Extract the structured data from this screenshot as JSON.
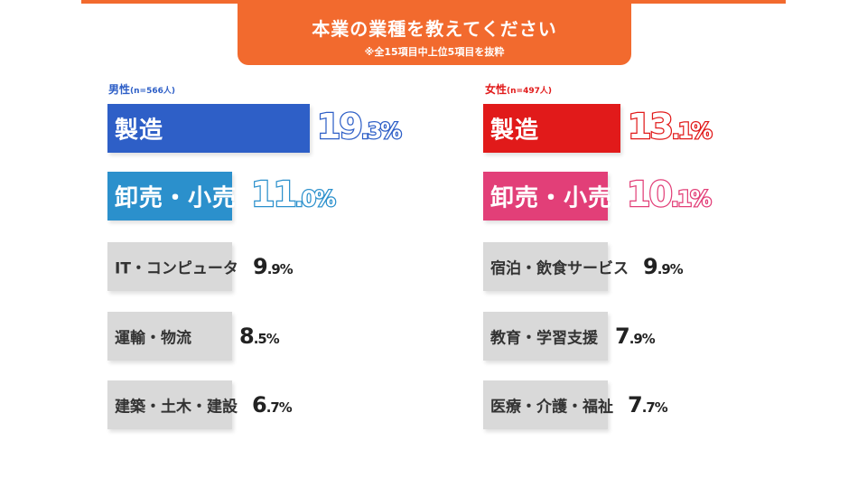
{
  "header": {
    "title": "本業の業種を教えてください",
    "subtitle": "※全15項目中上位5項目を抜粋"
  },
  "colors": {
    "orange": "#f26a2e",
    "male_blue": "#2e5fc7",
    "male_light_blue": "#2b90cc",
    "female_red": "#e11a1a",
    "female_pink": "#e23f78",
    "gray_bar": "#d9d9d9"
  },
  "chart_data": [
    {
      "type": "bar",
      "group": "男性",
      "n_label": "(n=566人)",
      "categories": [
        "製造",
        "卸売・小売",
        "IT・コンピュータ",
        "運輸・物流",
        "建築・土木・建設"
      ],
      "values": [
        19.3,
        11.0,
        9.9,
        8.5,
        6.7
      ],
      "value_labels": [
        "19.3%",
        "11.0%",
        "9.9%",
        "8.5%",
        "6.7%"
      ],
      "unit": "%"
    },
    {
      "type": "bar",
      "group": "女性",
      "n_label": "(n=497人)",
      "categories": [
        "製造",
        "卸売・小売",
        "宿泊・飲食サービス",
        "教育・学習支援",
        "医療・介護・福祉"
      ],
      "values": [
        13.1,
        10.1,
        9.9,
        7.9,
        7.7
      ],
      "value_labels": [
        "13.1%",
        "10.1%",
        "9.9%",
        "7.9%",
        "7.7%"
      ],
      "unit": "%"
    }
  ]
}
